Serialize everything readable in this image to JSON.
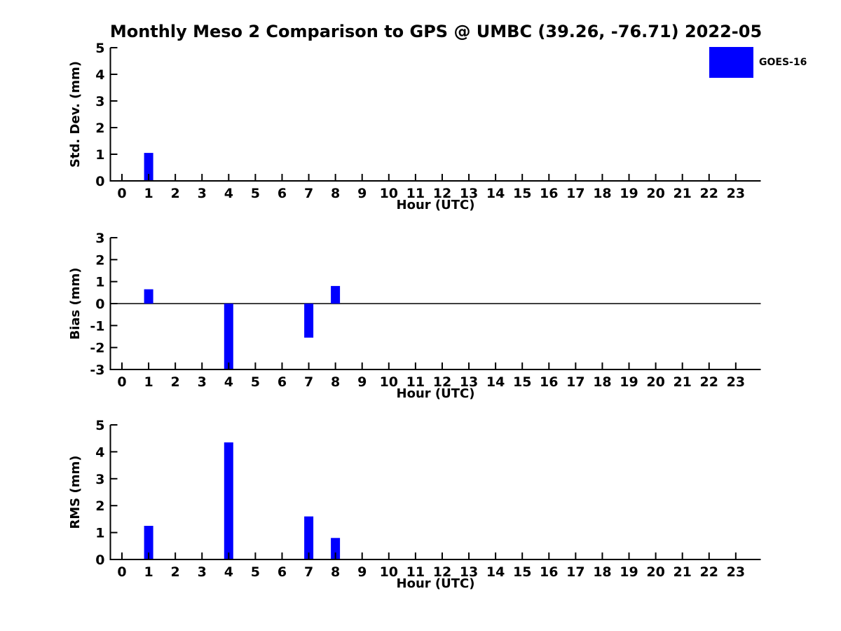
{
  "title": "Monthly Meso 2 Comparison to GPS @ UMBC (39.26, -76.71) 2022-05",
  "legend": {
    "label": "GOES-16",
    "color": "#0000FF",
    "position": "top-right"
  },
  "chart_data": [
    {
      "type": "bar",
      "series_name": "GOES-16",
      "ylabel": "Std. Dev. (mm)",
      "xlabel": "Hour (UTC)",
      "categories": [
        0,
        1,
        2,
        3,
        4,
        5,
        6,
        7,
        8,
        9,
        10,
        11,
        12,
        13,
        14,
        15,
        16,
        17,
        18,
        19,
        20,
        21,
        22,
        23
      ],
      "values": [
        0,
        1.05,
        0,
        0,
        0,
        0,
        0,
        0,
        0,
        0,
        0,
        0,
        0,
        0,
        0,
        0,
        0,
        0,
        0,
        0,
        0,
        0,
        0,
        0
      ],
      "ylim": [
        0,
        5
      ],
      "yticks": [
        0,
        1,
        2,
        3,
        4,
        5
      ],
      "xlim": [
        -0.45,
        23.95
      ],
      "grid": false,
      "zero_line": false,
      "bar_color": "#0000FF"
    },
    {
      "type": "bar",
      "series_name": "GOES-16",
      "ylabel": "Bias (mm)",
      "xlabel": "Hour (UTC)",
      "categories": [
        0,
        1,
        2,
        3,
        4,
        5,
        6,
        7,
        8,
        9,
        10,
        11,
        12,
        13,
        14,
        15,
        16,
        17,
        18,
        19,
        20,
        21,
        22,
        23
      ],
      "values": [
        0,
        0.65,
        0,
        0,
        -3.0,
        0,
        0,
        -1.55,
        0.8,
        0,
        0,
        0,
        0,
        0,
        0,
        0,
        0,
        0,
        0,
        0,
        0,
        0,
        0,
        0
      ],
      "ylim": [
        -3,
        3
      ],
      "yticks": [
        -3,
        -2,
        -1,
        0,
        1,
        2,
        3
      ],
      "xlim": [
        -0.45,
        23.95
      ],
      "grid": false,
      "zero_line": true,
      "bar_color": "#0000FF"
    },
    {
      "type": "bar",
      "series_name": "GOES-16",
      "ylabel": "RMS (mm)",
      "xlabel": "Hour (UTC)",
      "categories": [
        0,
        1,
        2,
        3,
        4,
        5,
        6,
        7,
        8,
        9,
        10,
        11,
        12,
        13,
        14,
        15,
        16,
        17,
        18,
        19,
        20,
        21,
        22,
        23
      ],
      "values": [
        0,
        1.25,
        0,
        0,
        4.35,
        0,
        0,
        1.6,
        0.8,
        0,
        0,
        0,
        0,
        0,
        0,
        0,
        0,
        0,
        0,
        0,
        0,
        0,
        0,
        0
      ],
      "ylim": [
        0,
        5
      ],
      "yticks": [
        0,
        1,
        2,
        3,
        4,
        5
      ],
      "xlim": [
        -0.45,
        23.95
      ],
      "grid": false,
      "zero_line": false,
      "bar_color": "#0000FF"
    }
  ]
}
